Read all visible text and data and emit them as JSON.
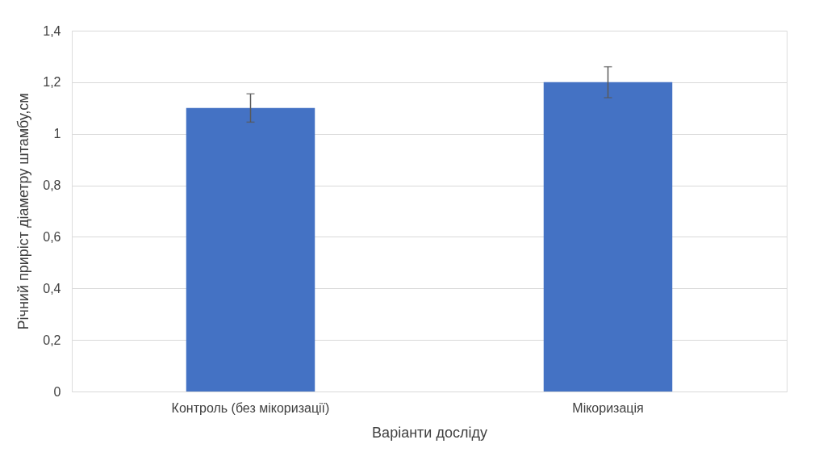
{
  "chart_data": {
    "type": "bar",
    "xlabel": "Варіанти досліду",
    "ylabel": "Річний приріст діаметру штамбу,см",
    "categories": [
      "Контроль (без мікоризації)",
      "Мікоризація"
    ],
    "values": [
      1.1,
      1.2
    ],
    "errors": [
      0.055,
      0.06
    ],
    "color": "#4472c4",
    "ylim": [
      0,
      1.4
    ],
    "yticks": [
      0,
      {
        "value": 0.2,
        "label": "0,2"
      },
      {
        "value": 0.4,
        "label": "0,4"
      },
      {
        "value": 0.6,
        "label": "0,6"
      },
      {
        "value": 0.8,
        "label": "0,8"
      },
      1,
      {
        "value": 1.2,
        "label": "1,2"
      },
      {
        "value": 1.4,
        "label": "1,4"
      }
    ],
    "grid": "y"
  }
}
